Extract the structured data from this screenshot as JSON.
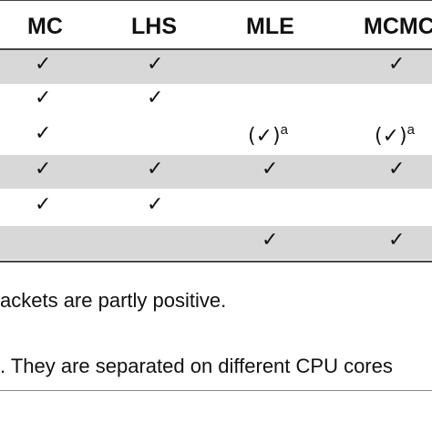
{
  "table": {
    "columns": [
      "MC",
      "LHS",
      "MLE",
      "MCMC"
    ],
    "rows": [
      {
        "mc": "✓",
        "lhs": "✓",
        "mle": "",
        "mcmc": "✓"
      },
      {
        "mc": "✓",
        "lhs": "✓",
        "mle": "",
        "mcmc": ""
      },
      {
        "mc": "✓",
        "lhs": "",
        "mle": "(✓)",
        "mle_sup": "a",
        "mcmc": "(✓)",
        "mcmc_sup": "a"
      },
      {
        "mc": "✓",
        "lhs": "✓",
        "mle": "✓",
        "mcmc": "✓"
      },
      {
        "mc": "✓",
        "lhs": "✓",
        "mle": "",
        "mcmc": ""
      },
      {
        "mc": "",
        "lhs": "",
        "mle": "✓",
        "mcmc": "✓"
      }
    ]
  },
  "footnotes": {
    "line1": "ackets are partly positive.",
    "line2": ". They are separated on different CPU cores"
  }
}
